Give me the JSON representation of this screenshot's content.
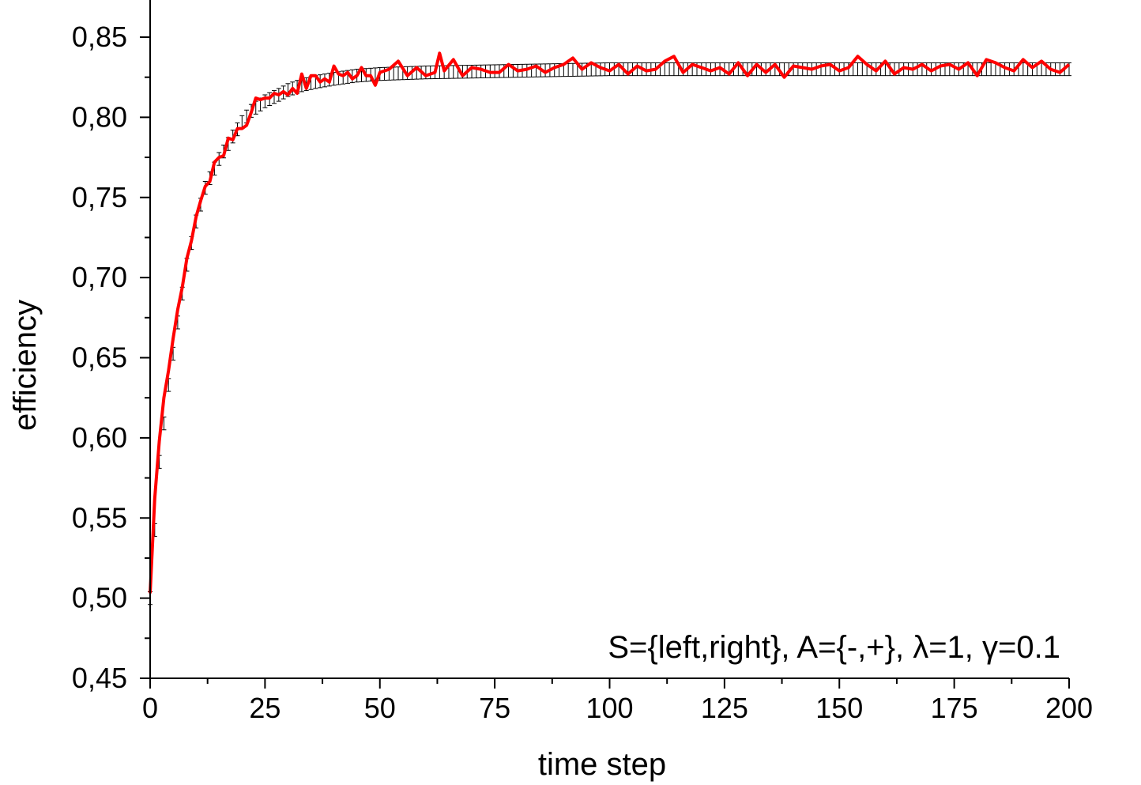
{
  "chart_data": {
    "type": "line",
    "title": "",
    "xlabel": "time step",
    "ylabel": "efficiency",
    "xlim": [
      0,
      200
    ],
    "ylim": [
      0.45,
      0.87
    ],
    "x_ticks": [
      {
        "value": 0,
        "label": "0"
      },
      {
        "value": 25,
        "label": "25"
      },
      {
        "value": 50,
        "label": "50"
      },
      {
        "value": 75,
        "label": "75"
      },
      {
        "value": 100,
        "label": "100"
      },
      {
        "value": 125,
        "label": "125"
      },
      {
        "value": 150,
        "label": "150"
      },
      {
        "value": 175,
        "label": "175"
      },
      {
        "value": 200,
        "label": "200"
      }
    ],
    "y_ticks": [
      {
        "value": 0.45,
        "label": "0,45"
      },
      {
        "value": 0.5,
        "label": "0,50"
      },
      {
        "value": 0.55,
        "label": "0,55"
      },
      {
        "value": 0.6,
        "label": "0,60"
      },
      {
        "value": 0.65,
        "label": "0,65"
      },
      {
        "value": 0.7,
        "label": "0,70"
      },
      {
        "value": 0.75,
        "label": "0,75"
      },
      {
        "value": 0.8,
        "label": "0,80"
      },
      {
        "value": 0.85,
        "label": "0,85"
      }
    ],
    "annotation": "S={left,right}, A={-,+}, λ=1, γ=0.1",
    "grid": false,
    "legend": "none",
    "series": [
      {
        "kind": "errorbar",
        "color": "#000000",
        "error": 0.004,
        "x": [
          0,
          2,
          4,
          6,
          8,
          10,
          12,
          15,
          18,
          20,
          22,
          25,
          28,
          30,
          33,
          36,
          40,
          45,
          50,
          55,
          60,
          70,
          80,
          90,
          100,
          120,
          140,
          160,
          180,
          200
        ],
        "y": [
          0.5,
          0.585,
          0.633,
          0.672,
          0.708,
          0.735,
          0.756,
          0.774,
          0.788,
          0.797,
          0.804,
          0.81,
          0.814,
          0.817,
          0.82,
          0.822,
          0.824,
          0.826,
          0.827,
          0.8275,
          0.828,
          0.8285,
          0.829,
          0.8295,
          0.83,
          0.83,
          0.83,
          0.83,
          0.83,
          0.83
        ]
      },
      {
        "kind": "line",
        "color": "#ff0000",
        "x": [
          0,
          1,
          2,
          3,
          4,
          5,
          6,
          7,
          8,
          9,
          10,
          11,
          12,
          13,
          14,
          15,
          16,
          17,
          18,
          19,
          20,
          21,
          22,
          23,
          24,
          25,
          26,
          27,
          28,
          29,
          30,
          31,
          32,
          33,
          34,
          35,
          36,
          37,
          38,
          39,
          40,
          41,
          42,
          43,
          44,
          45,
          46,
          47,
          48,
          49,
          50,
          52,
          54,
          56,
          58,
          60,
          62,
          63,
          64,
          66,
          68,
          70,
          72,
          74,
          76,
          78,
          80,
          82,
          84,
          86,
          88,
          90,
          92,
          94,
          96,
          98,
          100,
          102,
          104,
          106,
          108,
          110,
          112,
          114,
          116,
          118,
          120,
          122,
          124,
          126,
          128,
          130,
          132,
          134,
          136,
          138,
          140,
          142,
          144,
          146,
          148,
          150,
          152,
          154,
          156,
          158,
          160,
          162,
          164,
          166,
          168,
          170,
          172,
          174,
          176,
          178,
          180,
          182,
          184,
          186,
          188,
          190,
          192,
          194,
          196,
          198,
          200
        ],
        "y": [
          0.503,
          0.562,
          0.598,
          0.625,
          0.642,
          0.662,
          0.68,
          0.694,
          0.712,
          0.723,
          0.738,
          0.748,
          0.757,
          0.76,
          0.772,
          0.775,
          0.776,
          0.787,
          0.786,
          0.793,
          0.793,
          0.795,
          0.803,
          0.812,
          0.811,
          0.812,
          0.812,
          0.815,
          0.814,
          0.816,
          0.814,
          0.818,
          0.815,
          0.827,
          0.818,
          0.826,
          0.826,
          0.822,
          0.824,
          0.822,
          0.832,
          0.827,
          0.826,
          0.828,
          0.824,
          0.826,
          0.831,
          0.826,
          0.826,
          0.82,
          0.828,
          0.83,
          0.835,
          0.826,
          0.831,
          0.826,
          0.828,
          0.84,
          0.829,
          0.836,
          0.826,
          0.831,
          0.83,
          0.828,
          0.828,
          0.833,
          0.829,
          0.83,
          0.832,
          0.828,
          0.831,
          0.833,
          0.837,
          0.83,
          0.834,
          0.831,
          0.829,
          0.833,
          0.827,
          0.832,
          0.829,
          0.83,
          0.835,
          0.838,
          0.828,
          0.833,
          0.831,
          0.829,
          0.831,
          0.827,
          0.834,
          0.826,
          0.833,
          0.828,
          0.833,
          0.825,
          0.832,
          0.831,
          0.83,
          0.832,
          0.833,
          0.829,
          0.831,
          0.838,
          0.833,
          0.829,
          0.835,
          0.827,
          0.831,
          0.83,
          0.833,
          0.829,
          0.832,
          0.833,
          0.83,
          0.834,
          0.826,
          0.836,
          0.834,
          0.831,
          0.829,
          0.836,
          0.831,
          0.835,
          0.83,
          0.828,
          0.833
        ]
      }
    ]
  }
}
